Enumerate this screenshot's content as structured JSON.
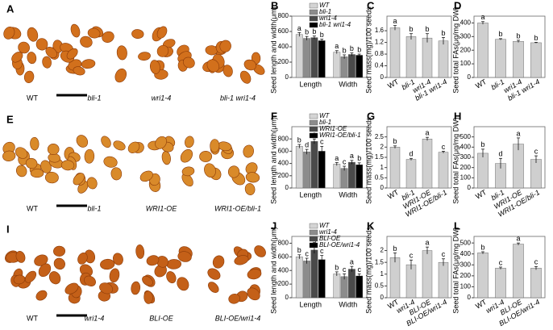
{
  "photo_panels": [
    {
      "letter": "A",
      "labels": [
        "WT",
        "bli-1",
        "wri1-4",
        "bli-1 wri1-4"
      ]
    },
    {
      "letter": "E",
      "labels": [
        "WT",
        "bli-1",
        "WRI1-OE",
        "WRI1-OE/bli-1"
      ]
    },
    {
      "letter": "I",
      "labels": [
        "WT",
        "wri1-4",
        "BLI-OE",
        "BLI-OE/wri1-4"
      ]
    }
  ],
  "chart_data": [
    {
      "panel": "B",
      "type": "bar",
      "ylabel": "Seed length and width(μm)",
      "categories": [
        "Length",
        "Width"
      ],
      "series": [
        {
          "name": "WT",
          "color": "#d4d4d4",
          "values": [
            560,
            330
          ],
          "errors": [
            25,
            20
          ],
          "letters": [
            "a",
            "a"
          ]
        },
        {
          "name": "bli-1",
          "color": "#8c8c8c",
          "values": [
            510,
            270
          ],
          "errors": [
            25,
            25
          ],
          "letters": [
            "b",
            "b"
          ]
        },
        {
          "name": "wri1-4",
          "color": "#4a4a4a",
          "values": [
            520,
            300
          ],
          "errors": [
            20,
            20
          ],
          "letters": [
            "b",
            "b"
          ]
        },
        {
          "name": "bli-1 wri1-4",
          "color": "#000000",
          "values": [
            480,
            290
          ],
          "errors": [
            20,
            15
          ],
          "letters": [
            "b",
            "b"
          ]
        }
      ],
      "ylim": [
        0,
        800
      ],
      "yticks": [
        0,
        200,
        400,
        600,
        800
      ]
    },
    {
      "panel": "C",
      "type": "bar",
      "ylabel": "Seed mass(mg)/100 seeds",
      "categories": [
        "WT",
        "bli-1",
        "wri1-4",
        "bli-1 wri1-4"
      ],
      "color": "#cfcfcf",
      "values": [
        1.7,
        1.4,
        1.35,
        1.25
      ],
      "errors": [
        0.08,
        0.1,
        0.15,
        0.12
      ],
      "letters": [
        "a",
        "b",
        "b",
        "b"
      ],
      "ylim": [
        0,
        2.1
      ],
      "yticks": [
        0,
        0.4,
        0.8,
        1.2,
        1.6
      ]
    },
    {
      "panel": "D",
      "type": "bar",
      "ylabel": "Seed total FAs(μg/mg DW)",
      "categories": [
        "WT",
        "bli-1",
        "wri1-4",
        "bli-1 wri1-4"
      ],
      "color": "#cfcfcf",
      "values": [
        400,
        280,
        265,
        255
      ],
      "errors": [
        10,
        5,
        8,
        3
      ],
      "letters": [
        "a",
        "b",
        "b",
        "b"
      ],
      "ylim": [
        0,
        450
      ],
      "yticks": [
        0,
        100,
        200,
        300,
        400
      ]
    },
    {
      "panel": "F",
      "type": "bar",
      "ylabel": "Seed length and width(μm)",
      "categories": [
        "Length",
        "Width"
      ],
      "series": [
        {
          "name": "WT",
          "color": "#d4d4d4",
          "values": [
            680,
            390
          ],
          "errors": [
            30,
            25
          ],
          "letters": [
            "b",
            "a"
          ]
        },
        {
          "name": "bli-1",
          "color": "#8c8c8c",
          "values": [
            590,
            320
          ],
          "errors": [
            40,
            35
          ],
          "letters": [
            "d",
            "c"
          ]
        },
        {
          "name": "WRI1-OE",
          "color": "#4a4a4a",
          "values": [
            760,
            420
          ],
          "errors": [
            40,
            30
          ],
          "letters": [
            "a",
            "a"
          ]
        },
        {
          "name": "WRI1-OE/bli-1",
          "color": "#000000",
          "values": [
            600,
            380
          ],
          "errors": [
            80,
            30
          ],
          "letters": [
            "c",
            "b"
          ]
        }
      ],
      "ylim": [
        0,
        1000
      ],
      "yticks": [
        0,
        200,
        400,
        600,
        800
      ]
    },
    {
      "panel": "G",
      "type": "bar",
      "ylabel": "Seed mass(mg)/100 seeds",
      "categories": [
        "WT",
        "bli-1",
        "WRI1-OE",
        "WRI1-OE/bli-1"
      ],
      "color": "#cfcfcf",
      "values": [
        2.0,
        1.4,
        2.4,
        1.75
      ],
      "errors": [
        0.06,
        0.05,
        0.08,
        0.05
      ],
      "letters": [
        "b",
        "d",
        "a",
        "c"
      ],
      "ylim": [
        0,
        3
      ],
      "yticks": [
        0,
        0.5,
        1,
        1.5,
        2,
        2.5
      ]
    },
    {
      "panel": "H",
      "type": "bar",
      "ylabel": "Seed total FAs(μg/mg DW)",
      "categories": [
        "WT",
        "bli-1",
        "WRI1-OE",
        "WRI1-OE/bli-1"
      ],
      "color": "#cfcfcf",
      "values": [
        340,
        240,
        430,
        280
      ],
      "errors": [
        40,
        50,
        60,
        35
      ],
      "letters": [
        "b",
        "d",
        "a",
        "c"
      ],
      "ylim": [
        0,
        600
      ],
      "yticks": [
        0,
        100,
        200,
        300,
        400,
        500
      ]
    },
    {
      "panel": "J",
      "type": "bar",
      "ylabel": "Seed length and width(μm)",
      "categories": [
        "Length",
        "Width"
      ],
      "series": [
        {
          "name": "WT",
          "color": "#d4d4d4",
          "values": [
            600,
            350
          ],
          "errors": [
            30,
            30
          ],
          "letters": [
            "b",
            "b"
          ]
        },
        {
          "name": "wri1-4",
          "color": "#8c8c8c",
          "values": [
            540,
            310
          ],
          "errors": [
            40,
            40
          ],
          "letters": [
            "c",
            "c"
          ]
        },
        {
          "name": "BLI-OE",
          "color": "#4a4a4a",
          "values": [
            700,
            420
          ],
          "errors": [
            50,
            40
          ],
          "letters": [
            "a",
            "a"
          ]
        },
        {
          "name": "BLI-OE/wri1-4",
          "color": "#000000",
          "values": [
            560,
            320
          ],
          "errors": [
            60,
            30
          ],
          "letters": [
            "c",
            "c"
          ]
        }
      ],
      "ylim": [
        0,
        900
      ],
      "yticks": [
        0,
        200,
        400,
        600,
        800
      ]
    },
    {
      "panel": "K",
      "type": "bar",
      "ylabel": "Seed mass(mg)/100 seeds",
      "categories": [
        "WT",
        "wri1-4",
        "BLI-OE",
        "BLI-OE/wri1-4"
      ],
      "color": "#cfcfcf",
      "values": [
        1.7,
        1.4,
        2.0,
        1.5
      ],
      "errors": [
        0.2,
        0.2,
        0.15,
        0.15
      ],
      "letters": [
        "b",
        "c",
        "a",
        "c"
      ],
      "ylim": [
        0,
        2.6
      ],
      "yticks": [
        0,
        0.5,
        1,
        1.5,
        2
      ]
    },
    {
      "panel": "L",
      "type": "bar",
      "ylabel": "Seed total FAs(μg/mg DW)",
      "categories": [
        "WT",
        "wri1-4",
        "BLI-OE",
        "BLI-OE/wri1-4"
      ],
      "color": "#cfcfcf",
      "values": [
        410,
        270,
        490,
        270
      ],
      "errors": [
        10,
        10,
        10,
        15
      ],
      "letters": [
        "b",
        "c",
        "a",
        "c"
      ],
      "ylim": [
        0,
        560
      ],
      "yticks": [
        0,
        100,
        200,
        300,
        400,
        500
      ]
    }
  ]
}
